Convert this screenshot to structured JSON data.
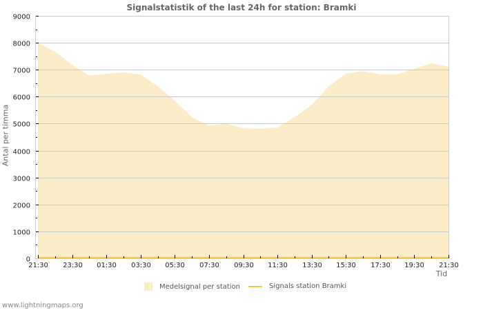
{
  "title": "Signalstatistik of the last 24h for station: Bramki",
  "ylabel": "Antal per timma",
  "xlabel": "Tid",
  "footer": "www.lightningmaps.org",
  "colors": {
    "fill": "#fdecc8",
    "line": "#f5c842",
    "grid": "#c8c8c8",
    "axis": "#cccccc"
  },
  "legend": [
    {
      "label": "Medelsignal per station",
      "type": "area",
      "color": "#fdecc8"
    },
    {
      "label": "Signals station Bramki",
      "type": "line",
      "color": "#f5c842"
    }
  ],
  "chart_data": {
    "type": "area",
    "title": "Signalstatistik of the last 24h for station: Bramki",
    "xlabel": "Tid",
    "ylabel": "Antal per timma",
    "ylim": [
      0,
      9000
    ],
    "yticks": [
      0,
      1000,
      2000,
      3000,
      4000,
      5000,
      6000,
      7000,
      8000,
      9000
    ],
    "xtick_labels": [
      "21:30",
      "23:30",
      "01:30",
      "03:30",
      "05:30",
      "07:30",
      "09:30",
      "11:30",
      "13:30",
      "15:30",
      "17:30",
      "19:30",
      "21:30"
    ],
    "grid": true,
    "legend_position": "bottom",
    "x": [
      "21:30",
      "22:30",
      "23:30",
      "00:30",
      "01:30",
      "02:30",
      "03:30",
      "04:30",
      "05:30",
      "06:30",
      "07:30",
      "08:30",
      "09:30",
      "10:30",
      "11:30",
      "12:30",
      "13:30",
      "14:30",
      "15:30",
      "16:30",
      "17:30",
      "18:30",
      "19:30",
      "20:30",
      "21:30"
    ],
    "series": [
      {
        "name": "Medelsignal per station",
        "type": "area",
        "values": [
          8000,
          7670,
          7180,
          6780,
          6850,
          6900,
          6830,
          6390,
          5850,
          5240,
          4930,
          4990,
          4830,
          4810,
          4860,
          5240,
          5700,
          6390,
          6850,
          6950,
          6830,
          6830,
          7030,
          7240,
          7110
        ]
      },
      {
        "name": "Signals station Bramki",
        "type": "line",
        "values": [
          0,
          0,
          0,
          0,
          0,
          0,
          0,
          0,
          0,
          0,
          0,
          0,
          0,
          0,
          0,
          0,
          0,
          0,
          0,
          0,
          0,
          0,
          0,
          0,
          0
        ]
      }
    ]
  }
}
